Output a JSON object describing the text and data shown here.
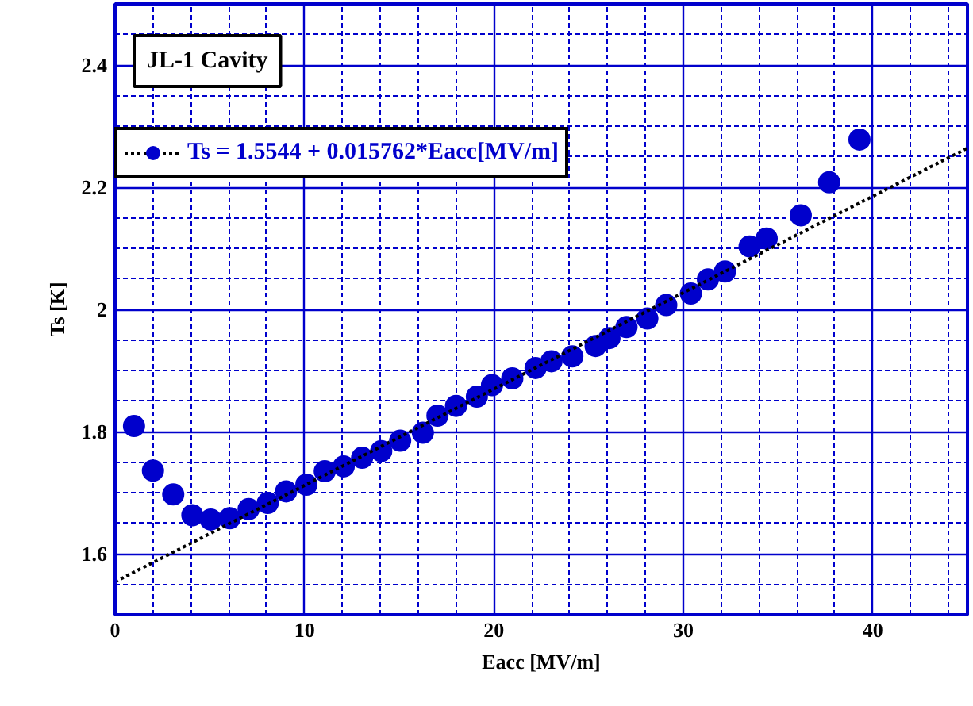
{
  "chart_data": {
    "type": "scatter",
    "xlabel": "Eacc [MV/m]",
    "ylabel": "Ts [K]",
    "annotations": [
      "JL-1 Cavity"
    ],
    "xlim": [
      0,
      45
    ],
    "xticks": [
      0,
      10,
      20,
      30,
      40
    ],
    "ylim": [
      1.5,
      2.5
    ],
    "yticks": [
      1.6,
      1.8,
      2,
      2.2,
      2.4
    ],
    "grid": true,
    "legend": "top left",
    "series": [
      {
        "name": "Ts = 1.5544 + 0.015762*Eacc[MV/m]",
        "marker": "circle",
        "color": "#0000cc",
        "x": [
          1.0,
          2.0,
          3.07,
          4.08,
          5.05,
          6.05,
          7.05,
          8.06,
          9.03,
          10.1,
          11.07,
          12.07,
          13.04,
          14.05,
          15.05,
          16.25,
          17.02,
          18.0,
          19.1,
          19.9,
          20.97,
          22.2,
          23.04,
          24.14,
          25.37,
          26.1,
          27.0,
          28.1,
          29.1,
          30.4,
          31.3,
          32.2,
          33.5,
          34.4,
          36.2,
          37.7,
          39.3
        ],
        "values": [
          1.809,
          1.736,
          1.697,
          1.663,
          1.656,
          1.658,
          1.673,
          1.683,
          1.702,
          1.713,
          1.735,
          1.743,
          1.757,
          1.768,
          1.785,
          1.798,
          1.826,
          1.842,
          1.857,
          1.876,
          1.887,
          1.904,
          1.915,
          1.923,
          1.94,
          1.953,
          1.971,
          1.985,
          2.007,
          2.026,
          2.049,
          2.062,
          2.103,
          2.116,
          2.154,
          2.208,
          2.278
        ]
      },
      {
        "type": "line",
        "marker": "none",
        "color": "#000000",
        "line_style": "dotted",
        "x": [
          0,
          45
        ],
        "values": [
          1.554,
          2.264
        ]
      }
    ]
  }
}
